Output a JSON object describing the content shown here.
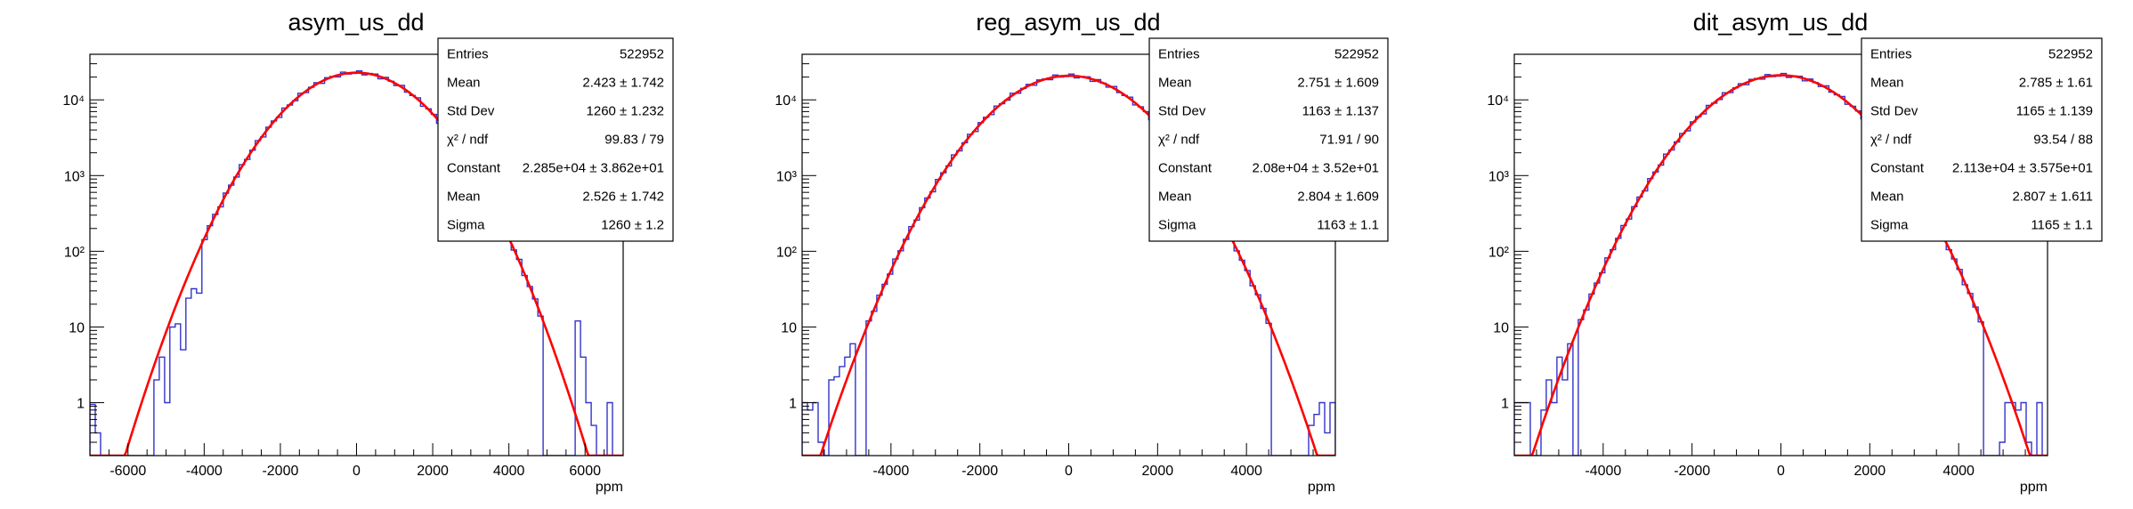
{
  "chart_data": [
    {
      "type": "histogram",
      "title": "asym_us_dd",
      "xlabel": "ppm",
      "ylabel": "",
      "x_scale": "linear",
      "y_scale": "log",
      "xlim": [
        -7000,
        7000
      ],
      "ylim": [
        0.2,
        40000
      ],
      "x_ticks": [
        -6000,
        -4000,
        -2000,
        0,
        2000,
        4000,
        6000
      ],
      "y_ticks": [
        {
          "value": 1,
          "label": "1"
        },
        {
          "value": 10,
          "label": "10"
        },
        {
          "value": 100,
          "label": "10²"
        },
        {
          "value": 1000,
          "label": "10³"
        },
        {
          "value": 10000,
          "label": "10⁴"
        }
      ],
      "histogram": {
        "name": "data",
        "color": "#3333cc",
        "bin_width": 140,
        "bins": [
          {
            "x": -7000,
            "y": 0.95
          },
          {
            "x": -6860,
            "y": 0.4
          },
          {
            "x": -5320,
            "y": 2.0
          },
          {
            "x": -5180,
            "y": 4.0
          },
          {
            "x": -5040,
            "y": 1.0
          },
          {
            "x": -4900,
            "y": 10.0
          },
          {
            "x": -4760,
            "y": 11.0
          },
          {
            "x": -4620,
            "y": 5.0
          },
          {
            "x": -4480,
            "y": 24.0
          },
          {
            "x": -4340,
            "y": 32.0
          },
          {
            "x": -4200,
            "y": 28.0
          },
          {
            "x": 5740,
            "y": 12.0
          },
          {
            "x": 5880,
            "y": 4.0
          },
          {
            "x": 6020,
            "y": 1.0
          },
          {
            "x": 6160,
            "y": 0.5
          },
          {
            "x": 6580,
            "y": 1.0
          }
        ]
      },
      "fit": {
        "name": "gaus",
        "color": "#ff0000",
        "constant": 22850,
        "mean": 2.526,
        "sigma": 1260
      },
      "stats": [
        {
          "label": "Entries",
          "value": "522952"
        },
        {
          "label": "Mean",
          "value": "2.423 ±  1.742"
        },
        {
          "label": "Std Dev",
          "value": "1260 ±  1.232"
        },
        {
          "label": "χ² / ndf",
          "value": "99.83 / 79"
        },
        {
          "label": "Constant",
          "value": "2.285e+04 ± 3.862e+01"
        },
        {
          "label": "Mean",
          "value": "2.526 ± 1.742"
        },
        {
          "label": "Sigma",
          "value": "1260 ± 1.2"
        }
      ]
    },
    {
      "type": "histogram",
      "title": "reg_asym_us_dd",
      "xlabel": "ppm",
      "ylabel": "",
      "x_scale": "linear",
      "y_scale": "log",
      "xlim": [
        -6000,
        6000
      ],
      "ylim": [
        0.2,
        40000
      ],
      "x_ticks": [
        -4000,
        -2000,
        0,
        2000,
        4000
      ],
      "y_ticks": [
        {
          "value": 1,
          "label": "1"
        },
        {
          "value": 10,
          "label": "10"
        },
        {
          "value": 100,
          "label": "10²"
        },
        {
          "value": 1000,
          "label": "10³"
        },
        {
          "value": 10000,
          "label": "10⁴"
        }
      ],
      "histogram": {
        "name": "data",
        "color": "#3333cc",
        "bin_width": 120,
        "bins": [
          {
            "x": -6000,
            "y": 1.0
          },
          {
            "x": -5880,
            "y": 0.8
          },
          {
            "x": -5760,
            "y": 1.0
          },
          {
            "x": -5640,
            "y": 0.3
          },
          {
            "x": -5400,
            "y": 2.0
          },
          {
            "x": -5280,
            "y": 2.2
          },
          {
            "x": -5160,
            "y": 3.0
          },
          {
            "x": -5040,
            "y": 4.0
          },
          {
            "x": -4920,
            "y": 6.0
          },
          {
            "x": 5400,
            "y": 0.5
          },
          {
            "x": 5520,
            "y": 0.7
          },
          {
            "x": 5640,
            "y": 1.0
          },
          {
            "x": 5760,
            "y": 0.4
          },
          {
            "x": 5880,
            "y": 1.0
          }
        ]
      },
      "fit": {
        "name": "gaus",
        "color": "#ff0000",
        "constant": 20800,
        "mean": 2.804,
        "sigma": 1163
      },
      "stats": [
        {
          "label": "Entries",
          "value": "522952"
        },
        {
          "label": "Mean",
          "value": "2.751 ±  1.609"
        },
        {
          "label": "Std Dev",
          "value": "1163 ±  1.137"
        },
        {
          "label": "χ² / ndf",
          "value": "71.91 / 90"
        },
        {
          "label": "Constant",
          "value": "2.08e+04 ± 3.52e+01"
        },
        {
          "label": "Mean",
          "value": "2.804 ± 1.609"
        },
        {
          "label": "Sigma",
          "value": "1163 ± 1.1"
        }
      ]
    },
    {
      "type": "histogram",
      "title": "dit_asym_us_dd",
      "xlabel": "ppm",
      "ylabel": "",
      "x_scale": "linear",
      "y_scale": "log",
      "xlim": [
        -6000,
        6000
      ],
      "ylim": [
        0.2,
        40000
      ],
      "x_ticks": [
        -4000,
        -2000,
        0,
        2000,
        4000
      ],
      "y_ticks": [
        {
          "value": 1,
          "label": "1"
        },
        {
          "value": 10,
          "label": "10"
        },
        {
          "value": 100,
          "label": "10²"
        },
        {
          "value": 1000,
          "label": "10³"
        },
        {
          "value": 10000,
          "label": "10⁴"
        }
      ],
      "histogram": {
        "name": "data",
        "color": "#3333cc",
        "bin_width": 120,
        "bins": [
          {
            "x": -6000,
            "y": 1.0
          },
          {
            "x": -5880,
            "y": 1.0
          },
          {
            "x": -5760,
            "y": 1.0
          },
          {
            "x": -5400,
            "y": 0.8
          },
          {
            "x": -5280,
            "y": 2.0
          },
          {
            "x": -5160,
            "y": 1.0
          },
          {
            "x": -5040,
            "y": 4.0
          },
          {
            "x": -4920,
            "y": 2.0
          },
          {
            "x": -4800,
            "y": 6.0
          },
          {
            "x": 4920,
            "y": 0.3
          },
          {
            "x": 5040,
            "y": 1.0
          },
          {
            "x": 5160,
            "y": 1.0
          },
          {
            "x": 5280,
            "y": 0.8
          },
          {
            "x": 5400,
            "y": 1.0
          },
          {
            "x": 5520,
            "y": 0.3
          },
          {
            "x": 5760,
            "y": 1.0
          }
        ]
      },
      "fit": {
        "name": "gaus",
        "color": "#ff0000",
        "constant": 21130,
        "mean": 2.807,
        "sigma": 1165
      },
      "stats": [
        {
          "label": "Entries",
          "value": "522952"
        },
        {
          "label": "Mean",
          "value": "2.785 ±  1.61"
        },
        {
          "label": "Std Dev",
          "value": "1165 ±  1.139"
        },
        {
          "label": "χ² / ndf",
          "value": "93.54 / 88"
        },
        {
          "label": "Constant",
          "value": "2.113e+04 ± 3.575e+01"
        },
        {
          "label": "Mean",
          "value": "2.807 ± 1.611"
        },
        {
          "label": "Sigma",
          "value": "1165 ± 1.1"
        }
      ]
    }
  ]
}
